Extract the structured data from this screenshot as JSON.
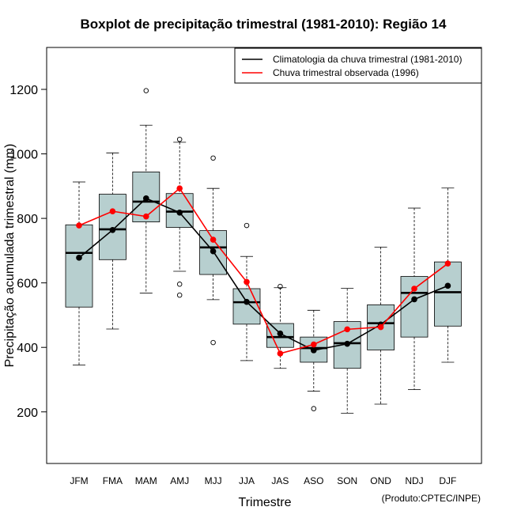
{
  "chart_data": {
    "type": "boxplot",
    "title": "Boxplot de precipitação trimestral (1981-2010): Região 14",
    "xlabel": "Trimestre",
    "ylabel": "Precipitação acumulada trimestral (mm)",
    "footer": "(Produto:CPTEC/INPE)",
    "ylim": [
      40,
      1330
    ],
    "yticks": [
      200,
      400,
      600,
      800,
      1000,
      1200
    ],
    "categories": [
      "JFM",
      "FMA",
      "MAM",
      "AMJ",
      "MJJ",
      "JJA",
      "JAS",
      "ASO",
      "SON",
      "OND",
      "NDJ",
      "DJF"
    ],
    "boxes": [
      {
        "min": 345,
        "q1": 525,
        "median": 693,
        "q3": 780,
        "max": 913,
        "outliers": []
      },
      {
        "min": 457,
        "q1": 672,
        "median": 766,
        "q3": 875,
        "max": 1003,
        "outliers": []
      },
      {
        "min": 568,
        "q1": 789,
        "median": 852,
        "q3": 944,
        "max": 1089,
        "outliers": [
          1196
        ]
      },
      {
        "min": 636,
        "q1": 772,
        "median": 821,
        "q3": 877,
        "max": 1036,
        "outliers": [
          1045,
          596,
          562
        ]
      },
      {
        "min": 548,
        "q1": 626,
        "median": 710,
        "q3": 762,
        "max": 893,
        "outliers": [
          987,
          415
        ]
      },
      {
        "min": 359,
        "q1": 472,
        "median": 540,
        "q3": 582,
        "max": 682,
        "outliers": [
          778
        ]
      },
      {
        "min": 335,
        "q1": 400,
        "median": 432,
        "q3": 474,
        "max": 585,
        "outliers": [
          589
        ]
      },
      {
        "min": 264,
        "q1": 354,
        "median": 398,
        "q3": 432,
        "max": 515,
        "outliers": [
          210
        ]
      },
      {
        "min": 196,
        "q1": 335,
        "median": 413,
        "q3": 480,
        "max": 583,
        "outliers": []
      },
      {
        "min": 224,
        "q1": 392,
        "median": 475,
        "q3": 532,
        "max": 711,
        "outliers": []
      },
      {
        "min": 269,
        "q1": 432,
        "median": 569,
        "q3": 620,
        "max": 832,
        "outliers": []
      },
      {
        "min": 354,
        "q1": 466,
        "median": 571,
        "q3": 665,
        "max": 894,
        "outliers": []
      }
    ],
    "series": [
      {
        "name": "Climatologia da chuva trimestral (1981-2010)",
        "color": "#000000",
        "values": [
          678,
          764,
          862,
          818,
          698,
          541,
          443,
          391,
          411,
          471,
          549,
          591
        ]
      },
      {
        "name": "Chuva trimestral observada (1996)",
        "color": "#ff0000",
        "values": [
          778,
          822,
          806,
          893,
          734,
          603,
          381,
          409,
          456,
          463,
          582,
          660
        ]
      }
    ],
    "box_fill": "#b7cfcf",
    "legend_position": "top-right"
  }
}
